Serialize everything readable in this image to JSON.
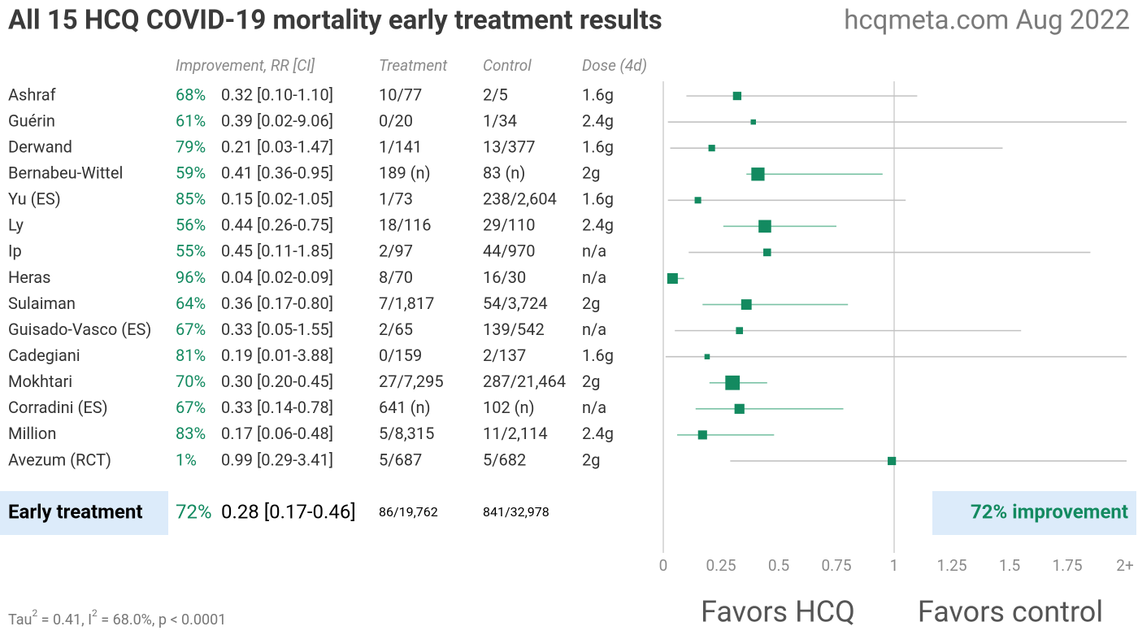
{
  "chart_data": {
    "type": "forest",
    "title": "All 15 HCQ COVID-19 mortality early treatment results",
    "source": "hcqmeta.com Aug 2022",
    "columns": [
      "Improvement, RR [CI]",
      "Treatment",
      "Control",
      "Dose (4d)"
    ],
    "studies": [
      {
        "name": "Ashraf",
        "improvement": "68%",
        "result": "0.32 [0.10-1.10]",
        "treatment": "10/77",
        "control": "2/5",
        "dose": "1.6g",
        "rr": 0.32,
        "ci_low": 0.1,
        "ci_high": 1.1
      },
      {
        "name": "Guérin",
        "improvement": "61%",
        "result": "0.39 [0.02-9.06]",
        "treatment": "0/20",
        "control": "1/34",
        "dose": "2.4g",
        "rr": 0.39,
        "ci_low": 0.02,
        "ci_high": 9.06
      },
      {
        "name": "Derwand",
        "improvement": "79%",
        "result": "0.21 [0.03-1.47]",
        "treatment": "1/141",
        "control": "13/377",
        "dose": "1.6g",
        "rr": 0.21,
        "ci_low": 0.03,
        "ci_high": 1.47
      },
      {
        "name": "Bernabeu-Wittel",
        "improvement": "59%",
        "result": "0.41 [0.36-0.95]",
        "treatment": "189 (n)",
        "control": "83 (n)",
        "dose": "2g",
        "rr": 0.41,
        "ci_low": 0.36,
        "ci_high": 0.95
      },
      {
        "name": "Yu (ES)",
        "improvement": "85%",
        "result": "0.15 [0.02-1.05]",
        "treatment": "1/73",
        "control": "238/2,604",
        "dose": "1.6g",
        "rr": 0.15,
        "ci_low": 0.02,
        "ci_high": 1.05
      },
      {
        "name": "Ly",
        "improvement": "56%",
        "result": "0.44 [0.26-0.75]",
        "treatment": "18/116",
        "control": "29/110",
        "dose": "2.4g",
        "rr": 0.44,
        "ci_low": 0.26,
        "ci_high": 0.75
      },
      {
        "name": "Ip",
        "improvement": "55%",
        "result": "0.45 [0.11-1.85]",
        "treatment": "2/97",
        "control": "44/970",
        "dose": "n/a",
        "rr": 0.45,
        "ci_low": 0.11,
        "ci_high": 1.85
      },
      {
        "name": "Heras",
        "improvement": "96%",
        "result": "0.04 [0.02-0.09]",
        "treatment": "8/70",
        "control": "16/30",
        "dose": "n/a",
        "rr": 0.04,
        "ci_low": 0.02,
        "ci_high": 0.09
      },
      {
        "name": "Sulaiman",
        "improvement": "64%",
        "result": "0.36 [0.17-0.80]",
        "treatment": "7/1,817",
        "control": "54/3,724",
        "dose": "2g",
        "rr": 0.36,
        "ci_low": 0.17,
        "ci_high": 0.8
      },
      {
        "name": "Guisado-Vasco (ES)",
        "improvement": "67%",
        "result": "0.33 [0.05-1.55]",
        "treatment": "2/65",
        "control": "139/542",
        "dose": "n/a",
        "rr": 0.33,
        "ci_low": 0.05,
        "ci_high": 1.55
      },
      {
        "name": "Cadegiani",
        "improvement": "81%",
        "result": "0.19 [0.01-3.88]",
        "treatment": "0/159",
        "control": "2/137",
        "dose": "1.6g",
        "rr": 0.19,
        "ci_low": 0.01,
        "ci_high": 3.88
      },
      {
        "name": "Mokhtari",
        "improvement": "70%",
        "result": "0.30 [0.20-0.45]",
        "treatment": "27/7,295",
        "control": "287/21,464",
        "dose": "2g",
        "rr": 0.3,
        "ci_low": 0.2,
        "ci_high": 0.45
      },
      {
        "name": "Corradini (ES)",
        "improvement": "67%",
        "result": "0.33 [0.14-0.78]",
        "treatment": "641 (n)",
        "control": "102 (n)",
        "dose": "n/a",
        "rr": 0.33,
        "ci_low": 0.14,
        "ci_high": 0.78
      },
      {
        "name": "Million",
        "improvement": "83%",
        "result": "0.17 [0.06-0.48]",
        "treatment": "5/8,315",
        "control": "11/2,114",
        "dose": "2.4g",
        "rr": 0.17,
        "ci_low": 0.06,
        "ci_high": 0.48
      },
      {
        "name": "Avezum (RCT)",
        "improvement": "1%",
        "result": "0.99 [0.29-3.41]",
        "treatment": "5/687",
        "control": "5/682",
        "dose": "2g",
        "rr": 0.99,
        "ci_low": 0.29,
        "ci_high": 3.41
      }
    ],
    "summary": {
      "name": "Early treatment",
      "improvement": "72%",
      "result": "0.28 [0.17-0.46]",
      "treatment": "86/19,762",
      "control": "841/32,978",
      "rr": 0.28,
      "ci_low": 0.17,
      "ci_high": 0.46,
      "badge": "72% improvement"
    },
    "xlim": [
      0,
      2
    ],
    "xticks": [
      0,
      0.25,
      0.5,
      0.75,
      1,
      1.25,
      1.5,
      1.75,
      {
        "value": 2,
        "label": "2+"
      }
    ],
    "favors": [
      "Favors HCQ",
      "Favors control"
    ],
    "footnote": [
      "Tau",
      "2",
      " = 0.41, I",
      "2",
      " = 68.0%, p < 0.0001"
    ],
    "color": "#138a60"
  }
}
